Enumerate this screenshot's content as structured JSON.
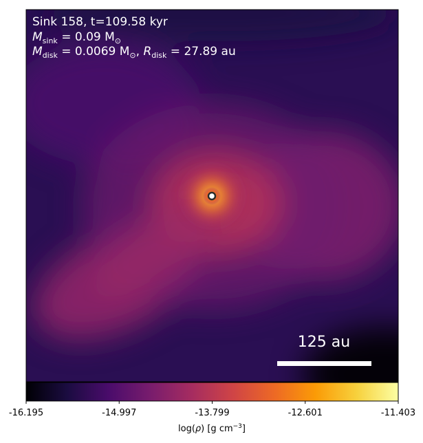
{
  "figure": {
    "annotation": {
      "line1": "Sink 158, t=109.58 kyr",
      "line2": {
        "var": "M",
        "sub": "sink",
        "rest": " = 0.09 M",
        "sun_sub": "⊙"
      },
      "line3": {
        "var1": "M",
        "sub1": "disk",
        "eq1": " = 0.0069 M",
        "sun_sub": "⊙",
        "sep": ", ",
        "var2": "R",
        "sub2": "disk",
        "eq2": " = 27.89 au"
      }
    },
    "scale_bar": {
      "label": "125 au"
    }
  },
  "chart_data": {
    "type": "heatmap",
    "title": "Sink 158, t=109.58 kyr",
    "colormap": "inferno",
    "colormap_stops": [
      "#000004",
      "#1b0c41",
      "#4a0c6b",
      "#781c6d",
      "#a52c60",
      "#cf4446",
      "#ed6925",
      "#fb9b06",
      "#f7d13d",
      "#fcffa4"
    ],
    "colorbar": {
      "min": -16.195,
      "max": -11.403,
      "ticks": [
        "-16.195",
        "-14.997",
        "-13.799",
        "-12.601",
        "-11.403"
      ],
      "tick_values": [
        -16.195,
        -14.997,
        -13.799,
        -12.601,
        -11.403
      ],
      "label": {
        "prefix": "log(",
        "symbol": "ρ",
        "mid": ") [g cm",
        "sup": "−3",
        "suffix": "]"
      }
    },
    "density_field": {
      "background": -15.6,
      "components": [
        {
          "name": "sink-core",
          "peak": -11.6
        },
        {
          "name": "inner-envelope",
          "peak": -13.1
        },
        {
          "name": "filament-lower-left",
          "peak": -14.0
        },
        {
          "name": "envelope-right",
          "peak": -14.3
        },
        {
          "name": "diffuse-upper-left",
          "peak": -15.0
        }
      ]
    },
    "sink": {
      "name": "Sink 158",
      "mass_msun": 0.09,
      "disk_mass_msun": 0.0069,
      "disk_radius_au": 27.89,
      "time_kyr": 109.58
    },
    "scale_bar_au": 125
  }
}
